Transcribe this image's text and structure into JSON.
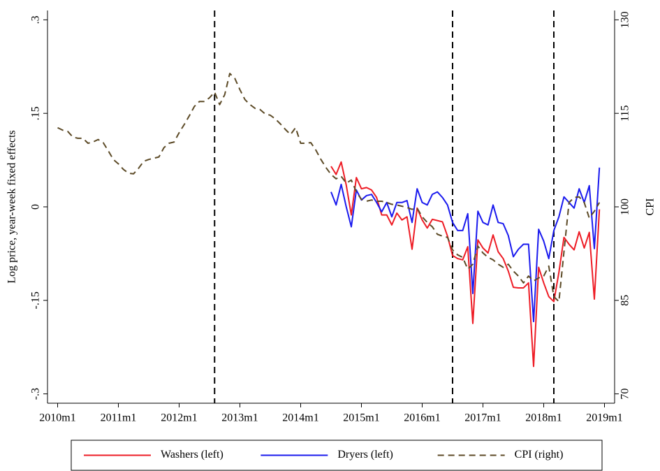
{
  "chart_data": {
    "type": "line",
    "ylabel": "Log price, year-week fixed effects",
    "y2label": "CPI",
    "x": [
      "2010m1",
      "2010m2",
      "2010m3",
      "2010m4",
      "2010m5",
      "2010m6",
      "2010m7",
      "2010m8",
      "2010m9",
      "2010m10",
      "2010m11",
      "2010m12",
      "2011m1",
      "2011m2",
      "2011m3",
      "2011m4",
      "2011m5",
      "2011m6",
      "2011m7",
      "2011m8",
      "2011m9",
      "2011m10",
      "2011m11",
      "2011m12",
      "2012m1",
      "2012m2",
      "2012m3",
      "2012m4",
      "2012m5",
      "2012m6",
      "2012m7",
      "2012m8",
      "2012m9",
      "2012m10",
      "2012m11",
      "2012m12",
      "2013m1",
      "2013m2",
      "2013m3",
      "2013m4",
      "2013m5",
      "2013m6",
      "2013m7",
      "2013m8",
      "2013m9",
      "2013m10",
      "2013m11",
      "2013m12",
      "2014m1",
      "2014m2",
      "2014m3",
      "2014m4",
      "2014m5",
      "2014m6",
      "2014m7",
      "2014m8",
      "2014m9",
      "2014m10",
      "2014m11",
      "2014m12",
      "2015m1",
      "2015m2",
      "2015m3",
      "2015m4",
      "2015m5",
      "2015m6",
      "2015m7",
      "2015m8",
      "2015m9",
      "2015m10",
      "2015m11",
      "2015m12",
      "2016m1",
      "2016m2",
      "2016m3",
      "2016m4",
      "2016m5",
      "2016m6",
      "2016m7",
      "2016m8",
      "2016m9",
      "2016m10",
      "2016m11",
      "2016m12",
      "2017m1",
      "2017m2",
      "2017m3",
      "2017m4",
      "2017m5",
      "2017m6",
      "2017m7",
      "2017m8",
      "2017m9",
      "2017m10",
      "2017m11",
      "2017m12",
      "2018m1",
      "2018m2",
      "2018m3",
      "2018m4",
      "2018m5",
      "2018m6",
      "2018m7",
      "2018m8",
      "2018m9",
      "2018m10",
      "2018m11",
      "2018m12"
    ],
    "xlim": [
      "2009m11",
      "2019m3"
    ],
    "xticks": [
      "2010m1",
      "2011m1",
      "2012m1",
      "2013m1",
      "2014m1",
      "2015m1",
      "2016m1",
      "2017m1",
      "2018m1",
      "2019m1"
    ],
    "ylim": [
      -0.315,
      0.315
    ],
    "yticks": [
      {
        "value": -0.3,
        "label": "-.3"
      },
      {
        "value": -0.15,
        "label": "-.15"
      },
      0,
      {
        "value": 0.15,
        "label": ".15"
      },
      {
        "value": 0.3,
        "label": ".3"
      }
    ],
    "y2lim": [
      68.5,
      131.5
    ],
    "y2ticks": [
      70,
      85,
      100,
      115,
      130
    ],
    "vlines": [
      "2012m8",
      "2016m7",
      "2018m3"
    ],
    "legend": "bottom",
    "series": [
      {
        "name": "Washers (left)",
        "color": "#ee1c25",
        "dash": false,
        "values": [
          null,
          null,
          null,
          null,
          null,
          null,
          null,
          null,
          null,
          null,
          null,
          null,
          null,
          null,
          null,
          null,
          null,
          null,
          null,
          null,
          null,
          null,
          null,
          null,
          null,
          null,
          null,
          null,
          null,
          null,
          null,
          null,
          null,
          null,
          null,
          null,
          null,
          null,
          null,
          null,
          null,
          null,
          null,
          null,
          null,
          null,
          null,
          null,
          null,
          null,
          null,
          null,
          null,
          null,
          0.065,
          0.052,
          0.072,
          0.035,
          -0.013,
          0.047,
          0.029,
          0.031,
          0.027,
          0.015,
          -0.013,
          -0.013,
          -0.029,
          -0.01,
          -0.021,
          -0.016,
          -0.068,
          -0.002,
          -0.021,
          -0.034,
          -0.02,
          -0.022,
          -0.024,
          -0.047,
          -0.078,
          -0.083,
          -0.085,
          -0.064,
          -0.187,
          -0.053,
          -0.066,
          -0.074,
          -0.045,
          -0.072,
          -0.083,
          -0.103,
          -0.129,
          -0.13,
          -0.13,
          -0.122,
          -0.256,
          -0.097,
          -0.122,
          -0.144,
          -0.152,
          -0.105,
          -0.049,
          -0.06,
          -0.069,
          -0.04,
          -0.066,
          -0.041,
          -0.148,
          -0.004
        ]
      },
      {
        "name": "Dryers (left)",
        "color": "#1a1aee",
        "dash": false,
        "values": [
          null,
          null,
          null,
          null,
          null,
          null,
          null,
          null,
          null,
          null,
          null,
          null,
          null,
          null,
          null,
          null,
          null,
          null,
          null,
          null,
          null,
          null,
          null,
          null,
          null,
          null,
          null,
          null,
          null,
          null,
          null,
          null,
          null,
          null,
          null,
          null,
          null,
          null,
          null,
          null,
          null,
          null,
          null,
          null,
          null,
          null,
          null,
          null,
          null,
          null,
          null,
          null,
          null,
          null,
          0.024,
          0.003,
          0.036,
          0,
          -0.032,
          0.027,
          0.011,
          0.018,
          0.02,
          0.007,
          -0.008,
          0.007,
          -0.016,
          0.007,
          0.007,
          0.01,
          -0.025,
          0.029,
          0.007,
          0.003,
          0.02,
          0.024,
          0.015,
          0.003,
          -0.025,
          -0.038,
          -0.038,
          -0.011,
          -0.139,
          -0.007,
          -0.025,
          -0.029,
          0.003,
          -0.025,
          -0.027,
          -0.046,
          -0.08,
          -0.068,
          -0.06,
          -0.06,
          -0.184,
          -0.036,
          -0.055,
          -0.083,
          -0.038,
          -0.016,
          0.016,
          0.007,
          -0.002,
          0.029,
          0.007,
          0.034,
          -0.067,
          0.063
        ]
      },
      {
        "name": "CPI (right)",
        "color": "#5c4a26",
        "dash": true,
        "axis": "y2",
        "values": [
          112.7,
          112.3,
          112.1,
          111.2,
          111.0,
          111.0,
          110.2,
          110.4,
          110.8,
          110.3,
          109.0,
          107.6,
          106.9,
          106.0,
          105.4,
          105.3,
          106.2,
          107.3,
          107.6,
          107.8,
          108.0,
          109.5,
          110.2,
          110.4,
          111.9,
          113.2,
          114.6,
          116.1,
          116.9,
          116.9,
          117.5,
          118.4,
          116.4,
          118.0,
          121.4,
          120.6,
          118.8,
          117.2,
          116.4,
          115.8,
          115.6,
          114.9,
          114.7,
          114.1,
          113.3,
          112.4,
          111.6,
          112.7,
          110.2,
          110.2,
          110.3,
          109.1,
          107.6,
          106.3,
          105.2,
          104.5,
          104.9,
          103.8,
          104.3,
          102.4,
          101.2,
          100.9,
          101.1,
          100.9,
          100.9,
          100.7,
          100.4,
          100.3,
          100.1,
          99.9,
          99.6,
          99.8,
          98.4,
          97.5,
          96.8,
          95.6,
          95.3,
          95.1,
          93.1,
          92.3,
          91.9,
          90.0,
          90.8,
          93.7,
          92.6,
          91.9,
          91.5,
          90.8,
          90.3,
          90.8,
          89.7,
          88.9,
          87.8,
          88.9,
          88.1,
          88.6,
          88.9,
          90.5,
          85.6,
          84.8,
          92.8,
          100.7,
          101.5,
          101.6,
          100.7,
          98.2,
          99.3,
          100.7
        ]
      }
    ]
  }
}
